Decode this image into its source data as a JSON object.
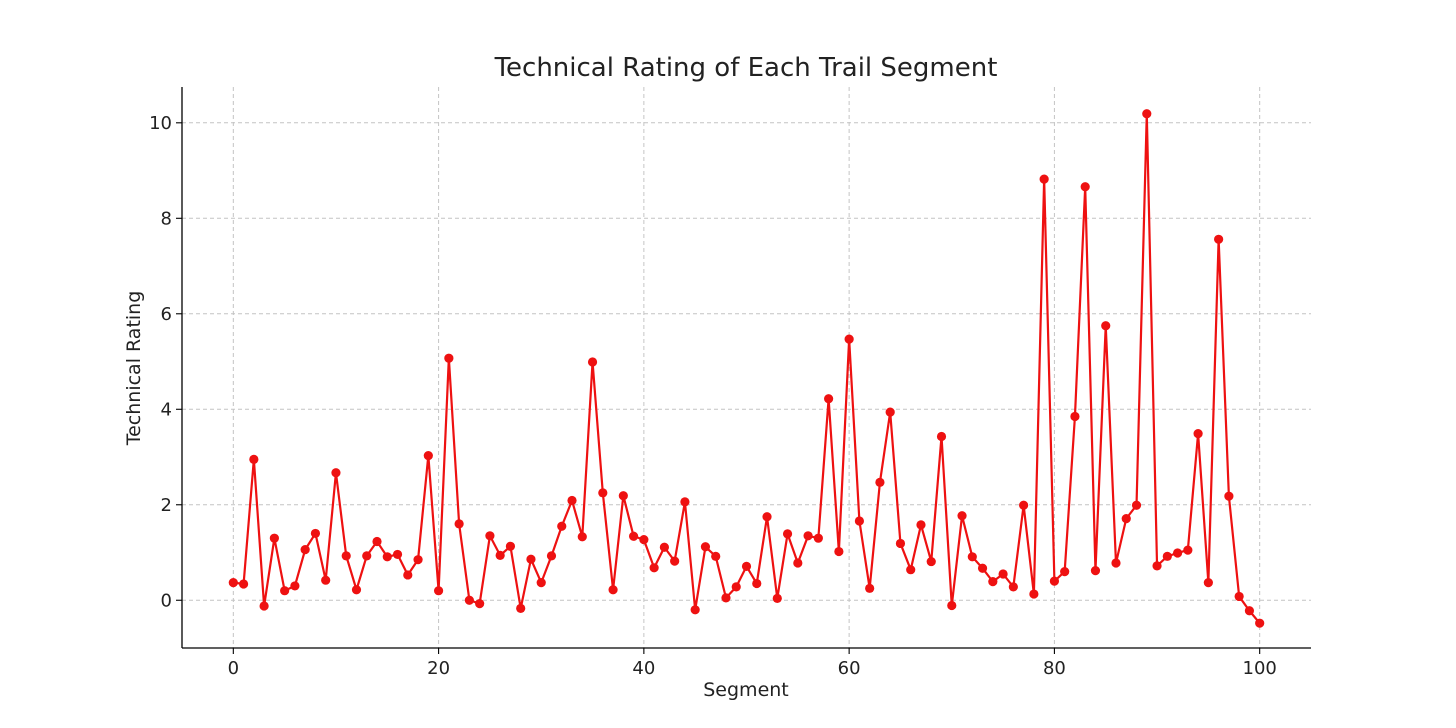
{
  "colors": {
    "series": "#ee1111",
    "grid": "#c4c4c4",
    "axis": "#000000",
    "text": "#222222"
  },
  "chart_data": {
    "type": "line",
    "title": "Technical Rating of Each Trail Segment",
    "xlabel": "Segment",
    "ylabel": "Technical Rating",
    "xlim": [
      -5,
      105
    ],
    "ylim": [
      -1,
      10.75
    ],
    "xticks": [
      0,
      20,
      40,
      60,
      80,
      100
    ],
    "yticks": [
      0,
      2,
      4,
      6,
      8,
      10
    ],
    "grid": true,
    "marker": "circle",
    "series": [
      {
        "x": [
          0,
          1,
          2,
          3,
          4,
          5,
          6,
          7,
          8,
          9,
          10,
          11,
          12,
          13,
          14,
          15,
          16,
          17,
          18,
          19,
          20,
          21,
          22,
          23,
          24,
          25,
          26,
          27,
          28,
          29,
          30,
          31,
          32,
          33,
          34,
          35,
          36,
          37,
          38,
          39,
          40,
          41,
          42,
          43,
          44,
          45,
          46,
          47,
          48,
          49,
          50,
          51,
          52,
          53,
          54,
          55,
          56,
          57,
          58,
          59,
          60,
          61,
          62,
          63,
          64,
          65,
          66,
          67,
          68,
          69,
          70,
          71,
          72,
          73,
          74,
          75,
          76,
          77,
          78,
          79,
          80,
          81,
          82,
          83,
          84,
          85,
          86,
          87,
          88,
          89,
          90,
          91,
          92,
          93,
          94,
          95,
          96,
          97,
          98,
          99,
          100
        ],
        "values": [
          0.37,
          0.34,
          2.95,
          -0.12,
          1.3,
          0.2,
          0.3,
          1.06,
          1.4,
          0.42,
          2.67,
          0.93,
          0.22,
          0.93,
          1.23,
          0.91,
          0.96,
          0.53,
          0.85,
          3.03,
          0.2,
          5.07,
          1.6,
          0.0,
          -0.07,
          1.35,
          0.94,
          1.13,
          -0.17,
          0.86,
          0.37,
          0.93,
          1.55,
          2.09,
          1.33,
          4.99,
          2.25,
          0.22,
          2.19,
          1.34,
          1.27,
          0.68,
          1.11,
          0.82,
          2.06,
          -0.2,
          1.12,
          0.92,
          0.05,
          0.28,
          0.71,
          0.35,
          1.75,
          0.04,
          1.39,
          0.78,
          1.35,
          1.3,
          4.22,
          1.02,
          5.47,
          1.66,
          0.25,
          2.47,
          3.94,
          1.19,
          0.64,
          1.58,
          0.81,
          3.43,
          -0.11,
          1.77,
          0.91,
          0.67,
          0.39,
          0.55,
          0.28,
          1.99,
          0.13,
          8.82,
          0.4,
          0.6,
          3.85,
          8.66,
          0.62,
          5.75,
          0.78,
          1.71,
          1.99,
          10.19,
          0.72,
          0.92,
          0.99,
          1.05,
          3.49,
          0.37,
          7.56,
          2.18,
          0.08,
          -0.22,
          -0.48
        ]
      }
    ]
  }
}
